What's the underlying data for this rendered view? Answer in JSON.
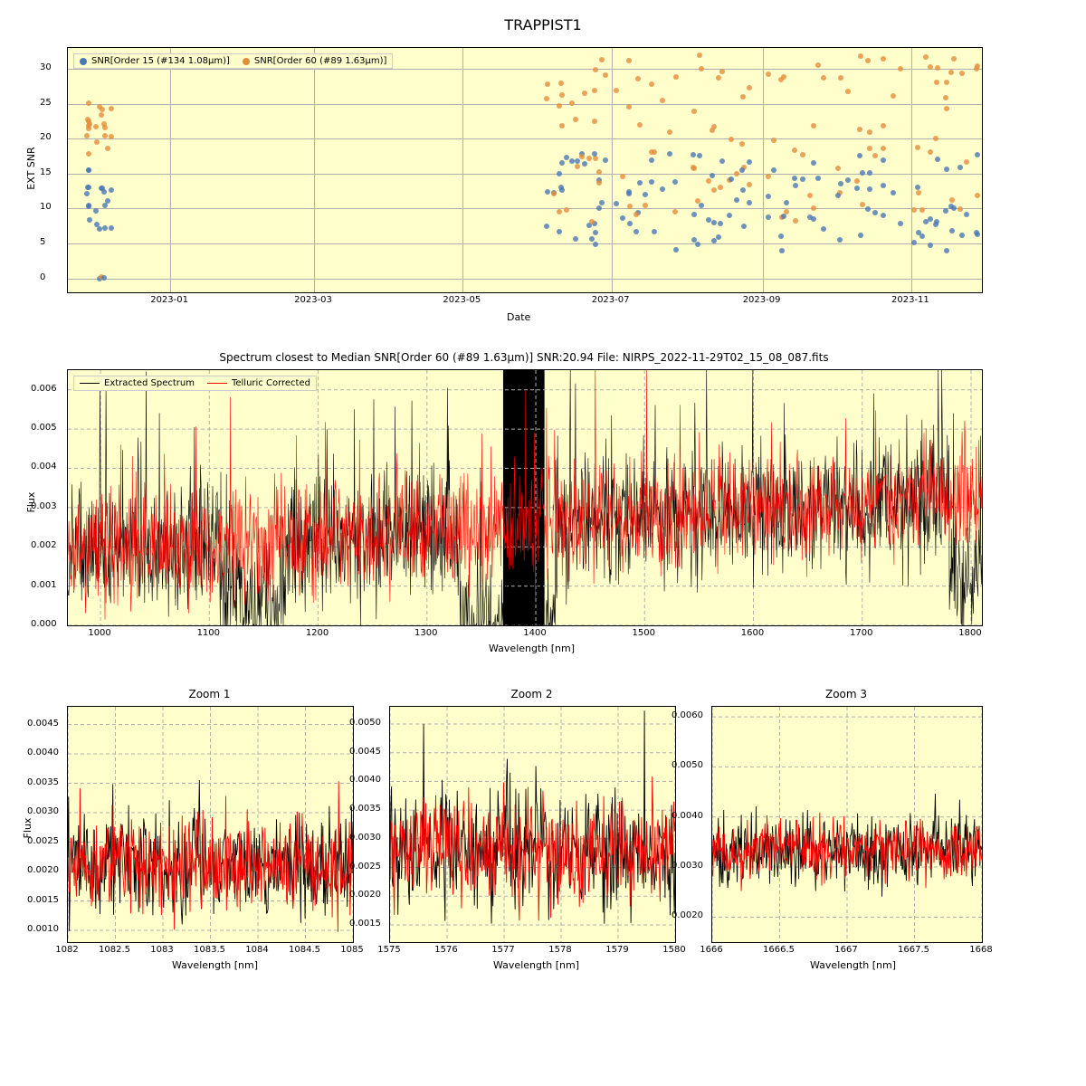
{
  "suptitle": "TRAPPIST1",
  "colors": {
    "panel_bg": "#ffffcc",
    "grid": "#b0b0b0",
    "series_a": "#4a78b5",
    "series_b": "#e58c3a",
    "spec_extracted": "#000000",
    "spec_telluric": "#ff0000"
  },
  "snr": {
    "title": "",
    "xlabel": "Date",
    "ylabel": "EXT SNR",
    "legend": {
      "a": "SNR[Order 15 (#134 1.08μm)]",
      "b": "SNR[Order 60 (#89 1.63μm)]"
    },
    "x_ticks": [
      "2023-01",
      "2023-03",
      "2023-05",
      "2023-07",
      "2023-09",
      "2023-11"
    ],
    "x_range": [
      "2022-11-20",
      "2023-11-30"
    ],
    "y_ticks": [
      0,
      5,
      10,
      15,
      20,
      25,
      30
    ],
    "y_range": [
      -2,
      33
    ],
    "marker_size": 6,
    "strip_jitter": 0.003
  },
  "spectrum": {
    "title_prefix": "Spectrum closest to Median SNR[Order 60 (#89 1.63μm)]",
    "snr_value": "20.94",
    "file_name": "NIRPS_2022-11-29T02_15_08_087.fits",
    "xlabel": "Wavelength [nm]",
    "ylabel": "Flux",
    "legend": {
      "a": "Extracted Spectrum",
      "b": "Telluric Corrected"
    },
    "x_range": [
      970,
      1810
    ],
    "x_ticks": [
      1000,
      1100,
      1200,
      1300,
      1400,
      1500,
      1600,
      1700,
      1800
    ],
    "y_range": [
      0.0,
      0.0065
    ],
    "y_ticks": [
      0.0,
      0.001,
      0.002,
      0.003,
      0.004,
      0.005,
      0.006
    ],
    "line_width": 0.6
  },
  "zooms": [
    {
      "title": "Zoom 1",
      "xlabel": "Wavelength [nm]",
      "x_range": [
        1082.0,
        1085.0
      ],
      "x_ticks": [
        1082.0,
        1082.5,
        1083.0,
        1083.5,
        1084.0,
        1084.5,
        1085.0
      ],
      "y_range": [
        0.0008,
        0.0048
      ],
      "y_ticks": [
        0.001,
        0.0015,
        0.002,
        0.0025,
        0.003,
        0.0035,
        0.004,
        0.0045
      ],
      "baseline": 0.0021,
      "noise": 0.0005
    },
    {
      "title": "Zoom 2",
      "xlabel": "Wavelength [nm]",
      "x_range": [
        1575,
        1580
      ],
      "x_ticks": [
        1575,
        1576,
        1577,
        1578,
        1579,
        1580
      ],
      "y_range": [
        0.0012,
        0.0053
      ],
      "y_ticks": [
        0.0015,
        0.002,
        0.0025,
        0.003,
        0.0035,
        0.004,
        0.0045,
        0.005
      ],
      "baseline": 0.0028,
      "noise": 0.0006
    },
    {
      "title": "Zoom 3",
      "xlabel": "Wavelength [nm]",
      "x_range": [
        1666.0,
        1668.0
      ],
      "x_ticks": [
        1666,
        1666.5,
        1667,
        1667.5,
        1668
      ],
      "y_range": [
        0.0015,
        0.0062
      ],
      "y_ticks": [
        0.002,
        0.003,
        0.004,
        0.005,
        0.006
      ],
      "baseline": 0.0033,
      "noise": 0.0004
    }
  ],
  "ylabel_zoom": "Flux"
}
